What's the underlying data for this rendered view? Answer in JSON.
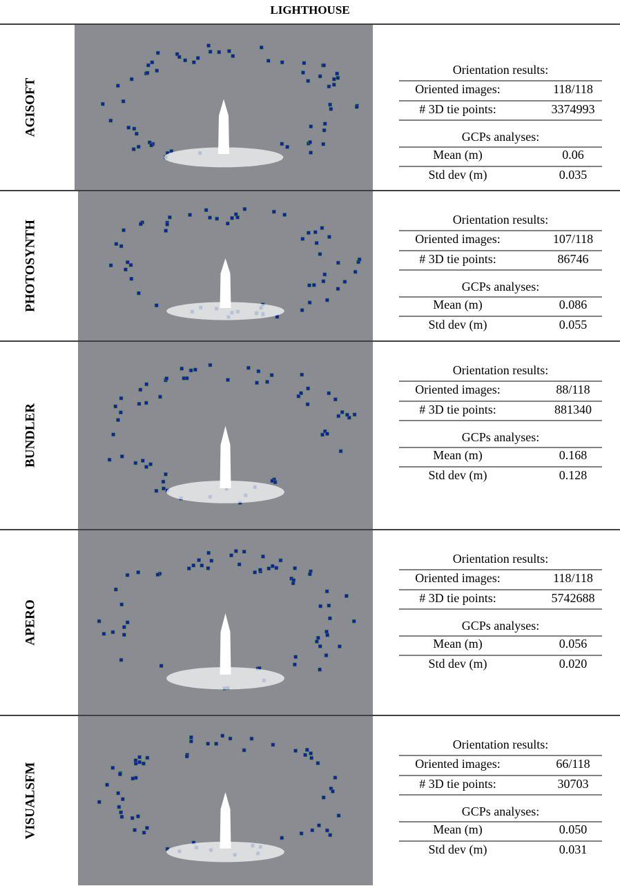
{
  "title": "LIGHTHOUSE",
  "rows": [
    {
      "label": "AGISOFT",
      "orientation_heading": "Orientation results:",
      "oriented_images_label": "Oriented images:",
      "oriented_images": "118/118",
      "tie_points_label": "# 3D tie points:",
      "tie_points": "3374993",
      "gcp_heading": "GCPs analyses:",
      "mean_label": "Mean (m)",
      "mean": "0.06",
      "std_label": "Std dev (m)",
      "std": "0.035"
    },
    {
      "label": "PHOTOSYNTH",
      "orientation_heading": "Orientation results:",
      "oriented_images_label": "Oriented images:",
      "oriented_images": "107/118",
      "tie_points_label": "# 3D tie points:",
      "tie_points": "86746",
      "gcp_heading": "GCPs analyses:",
      "mean_label": "Mean (m)",
      "mean": "0.086",
      "std_label": "Std dev (m)",
      "std": "0.055"
    },
    {
      "label": "BUNDLER",
      "orientation_heading": "Orientation results:",
      "oriented_images_label": "Oriented images:",
      "oriented_images": "88/118",
      "tie_points_label": "# 3D tie points:",
      "tie_points": "881340",
      "gcp_heading": "GCPs analyses:",
      "mean_label": "Mean (m)",
      "mean": "0.168",
      "std_label": "Std dev (m)",
      "std": "0.128"
    },
    {
      "label": "APERO",
      "orientation_heading": "Orientation results:",
      "oriented_images_label": "Oriented images:",
      "oriented_images": "118/118",
      "tie_points_label": "# 3D tie points:",
      "tie_points": "5742688",
      "gcp_heading": "GCPs analyses:",
      "mean_label": "Mean (m)",
      "mean": "0.056",
      "std_label": "Std dev (m)",
      "std": "0.020"
    },
    {
      "label": "VISUALSFM",
      "orientation_heading": "Orientation results:",
      "oriented_images_label": "Oriented images:",
      "oriented_images": "66/118",
      "tie_points_label": "# 3D tie points:",
      "tie_points": "30703",
      "gcp_heading": "GCPs analyses:",
      "mean_label": "Mean (m)",
      "mean": "0.050",
      "std_label": "Std dev (m)",
      "std": "0.031"
    }
  ]
}
